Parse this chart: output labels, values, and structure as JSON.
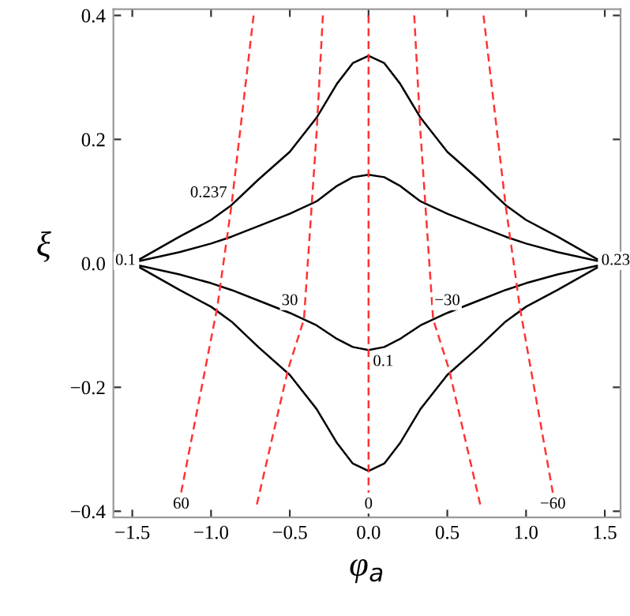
{
  "chart_data": {
    "type": "line",
    "xlabel": "φ$_{a}$",
    "ylabel": "ξ",
    "xlim": [
      -1.62,
      1.6
    ],
    "ylim": [
      -0.41,
      0.41
    ],
    "xticks": [
      {
        "value": -1.5,
        "label": "−1.5"
      },
      {
        "value": -1.0,
        "label": "−1.0"
      },
      {
        "value": -0.5,
        "label": "−0.5"
      },
      {
        "value": 0.0,
        "label": "0.0"
      },
      {
        "value": 0.5,
        "label": "0.5"
      },
      {
        "value": 1.0,
        "label": "1.0"
      },
      {
        "value": 1.5,
        "label": "1.5"
      }
    ],
    "yticks": [
      {
        "value": -0.4,
        "label": "−0.4"
      },
      {
        "value": -0.2,
        "label": "−0.2"
      },
      {
        "value": 0.0,
        "label": "0.0"
      },
      {
        "value": 0.2,
        "label": "0.2"
      },
      {
        "value": 0.4,
        "label": "0.4"
      }
    ],
    "grid": false,
    "legend": false,
    "series": [
      {
        "color": "#000000",
        "line_style": "solid",
        "x": [
          -1.45,
          -1.2,
          -1.0,
          -0.87,
          -0.7,
          -0.5,
          -0.33,
          -0.2,
          -0.1,
          0,
          0.1,
          0.2,
          0.33,
          0.5,
          0.7,
          0.87,
          1.0,
          1.2,
          1.45
        ],
        "values": [
          0.007,
          0.043,
          0.07,
          0.094,
          0.135,
          0.18,
          0.235,
          0.29,
          0.323,
          0.335,
          0.323,
          0.29,
          0.235,
          0.18,
          0.135,
          0.094,
          0.07,
          0.043,
          0.007
        ]
      },
      {
        "color": "#000000",
        "line_style": "solid",
        "x": [
          -1.45,
          -1.2,
          -1.0,
          -0.87,
          -0.7,
          -0.5,
          -0.33,
          -0.2,
          -0.1,
          0,
          0.1,
          0.2,
          0.33,
          0.5,
          0.7,
          0.87,
          1.0,
          1.2,
          1.45
        ],
        "values": [
          0.004,
          0.018,
          0.032,
          0.043,
          0.06,
          0.08,
          0.1,
          0.125,
          0.139,
          0.143,
          0.139,
          0.125,
          0.1,
          0.08,
          0.06,
          0.043,
          0.032,
          0.018,
          0.004
        ]
      },
      {
        "color": "#000000",
        "line_style": "solid",
        "x": [
          -1.45,
          -1.2,
          -1.0,
          -0.87,
          -0.7,
          -0.5,
          -0.33,
          -0.2,
          -0.1,
          0,
          0.1,
          0.2,
          0.33,
          0.5,
          0.7,
          0.87,
          1.0,
          1.2,
          1.45
        ],
        "values": [
          -0.004,
          -0.018,
          -0.032,
          -0.043,
          -0.06,
          -0.08,
          -0.1,
          -0.122,
          -0.135,
          -0.14,
          -0.135,
          -0.122,
          -0.1,
          -0.08,
          -0.06,
          -0.043,
          -0.032,
          -0.018,
          -0.004
        ]
      },
      {
        "color": "#000000",
        "line_style": "solid",
        "x": [
          -1.45,
          -1.2,
          -1.0,
          -0.87,
          -0.7,
          -0.5,
          -0.33,
          -0.2,
          -0.1,
          0,
          0.1,
          0.2,
          0.33,
          0.5,
          0.7,
          0.87,
          1.0,
          1.2,
          1.45
        ],
        "values": [
          -0.007,
          -0.043,
          -0.07,
          -0.094,
          -0.135,
          -0.18,
          -0.235,
          -0.29,
          -0.323,
          -0.335,
          -0.323,
          -0.29,
          -0.235,
          -0.18,
          -0.135,
          -0.094,
          -0.07,
          -0.043,
          -0.007
        ]
      },
      {
        "color": "#ff3333",
        "line_style": "dashed",
        "x": [
          -0.73,
          -0.87,
          -0.96,
          -1.19
        ],
        "values": [
          0.4,
          0.094,
          -0.07,
          -0.37
        ]
      },
      {
        "color": "#ff3333",
        "line_style": "dashed",
        "x": [
          -0.29,
          -0.33,
          -0.41,
          -0.51,
          -0.71
        ],
        "values": [
          0.4,
          0.21,
          -0.09,
          -0.17,
          -0.39
        ]
      },
      {
        "color": "#ff3333",
        "line_style": "dashed",
        "x": [
          0,
          0
        ],
        "values": [
          0.4,
          -0.37
        ]
      },
      {
        "color": "#ff3333",
        "line_style": "dashed",
        "x": [
          0.29,
          0.33,
          0.41,
          0.51,
          0.71
        ],
        "values": [
          0.4,
          0.21,
          -0.09,
          -0.17,
          -0.39
        ]
      },
      {
        "color": "#ff3333",
        "line_style": "dashed",
        "x": [
          0.73,
          0.87,
          0.96,
          1.17
        ],
        "values": [
          0.4,
          0.094,
          -0.07,
          -0.37
        ]
      }
    ],
    "annotations": [
      {
        "text": "0.237",
        "x": -0.87,
        "y": 0.094
      },
      {
        "text": "0.1",
        "x": -1.45,
        "y": 0.004
      },
      {
        "text": "0.1",
        "x": 0,
        "y": -0.14
      },
      {
        "text": "0.23",
        "x": 1.45,
        "y": 0.004
      },
      {
        "text": "60",
        "x": -1.19,
        "y": -0.37
      },
      {
        "text": "30",
        "x": -0.5,
        "y": -0.08
      },
      {
        "text": "0",
        "x": 0,
        "y": -0.37
      },
      {
        "text": "−30",
        "x": 0.5,
        "y": -0.08
      },
      {
        "text": "−60",
        "x": 1.17,
        "y": -0.37
      }
    ]
  }
}
